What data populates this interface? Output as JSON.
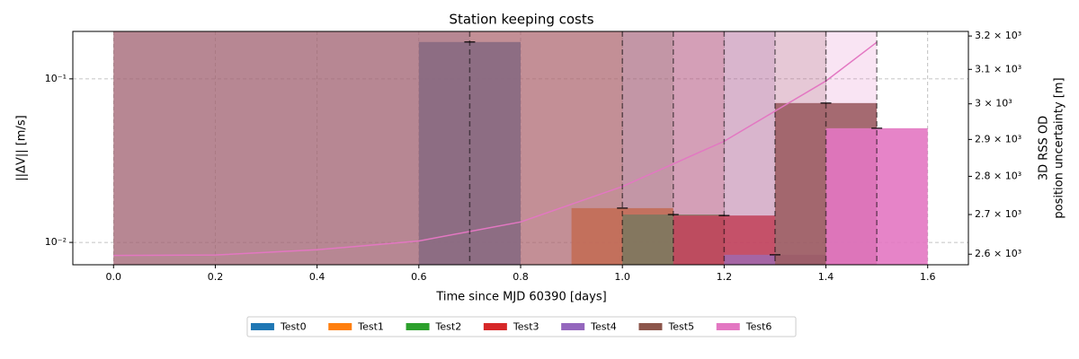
{
  "chart_data": {
    "type": "bar",
    "title": "Station keeping costs",
    "x_label": "Time since MJD 60390 [days]",
    "y_label": "||ΔV|| [m/s]",
    "y2_label": [
      "3D RSS OD",
      "position uncertainty [m]"
    ],
    "xlim": [
      -0.08,
      1.68
    ],
    "xticks": [
      {
        "value": 0,
        "label": "0.0"
      },
      0.2,
      0.4,
      0.6,
      0.8,
      {
        "value": 1,
        "label": "1.0"
      },
      1.2,
      1.4,
      1.6
    ],
    "ylim": [
      0.0073,
      0.195
    ],
    "yticks": [
      {
        "value": 0.01,
        "label": "10⁻²"
      },
      {
        "value": 0.1,
        "label": "10⁻¹"
      }
    ],
    "y2lim": [
      2574,
      3214
    ],
    "y2ticks": [
      {
        "value": 2600,
        "label": "2.6 × 10³"
      },
      {
        "value": 2700,
        "label": "2.7 × 10³"
      },
      {
        "value": 2800,
        "label": "2.8 × 10³"
      },
      {
        "value": 2900,
        "label": "2.9 × 10³"
      },
      {
        "value": 3000,
        "label": "3 × 10³"
      },
      {
        "value": 3100,
        "label": "3.1 × 10³"
      },
      {
        "value": 3200,
        "label": "3.2 × 10³"
      }
    ],
    "log_y": true,
    "log_y2": true,
    "grid": true,
    "legend": "bottom",
    "series": [
      {
        "name": "Test0",
        "color": "#1f77b4",
        "x": [
          0.7
        ],
        "values": [
          0.168
        ]
      },
      {
        "name": "Test1",
        "color": "#ff7f0e",
        "x": [
          1.0
        ],
        "values": [
          0.0162
        ]
      },
      {
        "name": "Test2",
        "color": "#2ca02c",
        "x": [
          1.1
        ],
        "values": [
          0.0148
        ]
      },
      {
        "name": "Test3",
        "color": "#d62728",
        "x": [
          1.2
        ],
        "values": [
          0.0146
        ]
      },
      {
        "name": "Test4",
        "color": "#9467bd",
        "x": [
          1.3
        ],
        "values": [
          0.0084
        ]
      },
      {
        "name": "Test5",
        "color": "#8c564b",
        "x": [
          1.4
        ],
        "values": [
          0.0711
        ]
      },
      {
        "name": "Test6",
        "color": "#e377c2",
        "x": [
          1.5
        ],
        "values": [
          0.0499
        ]
      }
    ],
    "lines": [
      {
        "axis": "y2",
        "color": "#e377c2",
        "x": [
          0,
          0.2,
          0.4,
          0.6,
          0.8,
          1.0,
          1.2,
          1.4,
          1.5
        ],
        "values": [
          2597,
          2598,
          2611,
          2633,
          2681,
          2773,
          2895,
          3066,
          3181
        ]
      }
    ]
  }
}
